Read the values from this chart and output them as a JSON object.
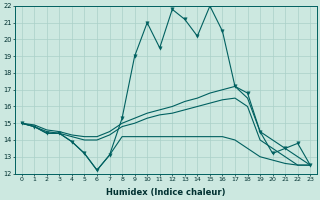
{
  "xlabel": "Humidex (Indice chaleur)",
  "xlim": [
    -0.5,
    23.5
  ],
  "ylim": [
    12,
    22
  ],
  "xticks": [
    0,
    1,
    2,
    3,
    4,
    5,
    6,
    7,
    8,
    9,
    10,
    11,
    12,
    13,
    14,
    15,
    16,
    17,
    18,
    19,
    20,
    21,
    22,
    23
  ],
  "yticks": [
    12,
    13,
    14,
    15,
    16,
    17,
    18,
    19,
    20,
    21,
    22
  ],
  "bg_color": "#cce8e0",
  "line_color": "#006060",
  "grid_color": "#aad0c8",
  "line1_y": [
    15.0,
    14.8,
    14.4,
    14.4,
    13.9,
    13.2,
    12.2,
    13.1,
    15.3,
    19.0,
    21.0,
    19.5,
    21.8,
    21.2,
    20.2,
    22.0,
    20.5,
    17.2,
    16.8,
    14.5,
    13.2,
    13.5,
    13.8,
    12.5
  ],
  "line1_markers": [
    0,
    1,
    2,
    3,
    4,
    5,
    6,
    7,
    8,
    9,
    10,
    11,
    12,
    13,
    14,
    15,
    16,
    17,
    18,
    19,
    20,
    21,
    22,
    23
  ],
  "line2_y": [
    15.0,
    14.9,
    14.6,
    14.5,
    14.3,
    14.2,
    14.2,
    14.5,
    15.0,
    15.3,
    15.6,
    15.8,
    16.0,
    16.3,
    16.5,
    16.8,
    17.0,
    17.2,
    16.5,
    14.5,
    14.0,
    13.5,
    13.0,
    12.5
  ],
  "line3_y": [
    15.0,
    14.8,
    14.5,
    14.4,
    14.2,
    14.0,
    14.0,
    14.3,
    14.8,
    15.0,
    15.3,
    15.5,
    15.6,
    15.8,
    16.0,
    16.2,
    16.4,
    16.5,
    16.0,
    14.0,
    13.5,
    13.0,
    12.5,
    12.5
  ],
  "line4_y": [
    15.0,
    14.8,
    14.4,
    14.4,
    13.9,
    13.2,
    12.2,
    13.1,
    14.2,
    14.2,
    14.2,
    14.2,
    14.2,
    14.2,
    14.2,
    14.2,
    14.2,
    14.0,
    13.5,
    13.0,
    12.8,
    12.6,
    12.5,
    12.5
  ]
}
